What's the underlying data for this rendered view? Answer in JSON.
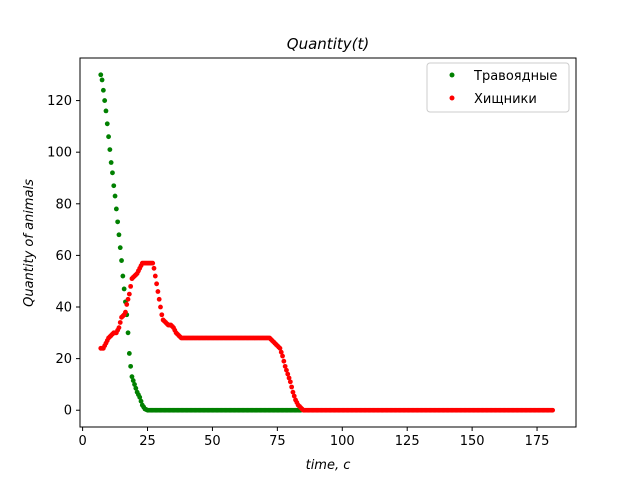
{
  "chart_data": {
    "type": "scatter",
    "title": "Quantity(t)",
    "xlabel": "time,  c",
    "ylabel": "Quantity of animals",
    "xlim": [
      -1,
      190
    ],
    "ylim": [
      -6.5,
      136.5
    ],
    "xticks": [
      0,
      25,
      50,
      75,
      100,
      125,
      150,
      175
    ],
    "yticks": [
      0,
      20,
      40,
      60,
      80,
      100,
      120
    ],
    "grid": false,
    "legend_position": "top-right",
    "series": [
      {
        "name": "Травоядные",
        "color": "#008000",
        "points": [
          [
            7,
            130
          ],
          [
            7.5,
            128
          ],
          [
            8,
            124
          ],
          [
            8.5,
            120
          ],
          [
            9,
            116
          ],
          [
            9.5,
            111
          ],
          [
            10,
            106
          ],
          [
            10.5,
            101
          ],
          [
            11,
            96
          ],
          [
            11.5,
            92
          ],
          [
            12,
            87
          ],
          [
            12.5,
            83
          ],
          [
            13,
            78
          ],
          [
            13.5,
            73
          ],
          [
            14,
            68
          ],
          [
            14.5,
            63
          ],
          [
            15,
            58
          ],
          [
            15.5,
            52
          ],
          [
            16,
            47
          ],
          [
            16.5,
            42
          ],
          [
            17,
            37
          ],
          [
            17.5,
            30
          ],
          [
            18,
            22
          ],
          [
            18.5,
            17
          ],
          [
            19,
            13
          ],
          [
            20,
            10
          ],
          [
            21,
            7
          ],
          [
            22,
            5
          ],
          [
            23,
            2
          ],
          [
            24,
            0.5
          ],
          [
            25,
            0
          ],
          [
            27,
            0
          ],
          [
            30,
            0
          ],
          [
            35,
            0
          ],
          [
            40,
            0
          ],
          [
            45,
            0
          ],
          [
            50,
            0
          ],
          [
            55,
            0
          ],
          [
            60,
            0
          ],
          [
            65,
            0
          ],
          [
            70,
            0
          ],
          [
            75,
            0
          ],
          [
            80,
            0
          ],
          [
            84,
            0
          ]
        ]
      },
      {
        "name": "Хищники",
        "color": "#ff0000",
        "points": [
          [
            7,
            24
          ],
          [
            8,
            24
          ],
          [
            9,
            26
          ],
          [
            10,
            28
          ],
          [
            11,
            29
          ],
          [
            12,
            30
          ],
          [
            13,
            30
          ],
          [
            14,
            32
          ],
          [
            15,
            36
          ],
          [
            16,
            37
          ],
          [
            16.5,
            38
          ],
          [
            17,
            41
          ],
          [
            17.5,
            43
          ],
          [
            18,
            45
          ],
          [
            18.5,
            48
          ],
          [
            19,
            51
          ],
          [
            20,
            52
          ],
          [
            21,
            53
          ],
          [
            22,
            55
          ],
          [
            23,
            57
          ],
          [
            24,
            57
          ],
          [
            25,
            57
          ],
          [
            26,
            57
          ],
          [
            27,
            57
          ],
          [
            27.5,
            55
          ],
          [
            28,
            52
          ],
          [
            28.5,
            49
          ],
          [
            29,
            46
          ],
          [
            29.5,
            43
          ],
          [
            30,
            40
          ],
          [
            30.5,
            37
          ],
          [
            31,
            35
          ],
          [
            32,
            34
          ],
          [
            33,
            33
          ],
          [
            34,
            33
          ],
          [
            35,
            32
          ],
          [
            36,
            30
          ],
          [
            37,
            29
          ],
          [
            38,
            28
          ],
          [
            40,
            28
          ],
          [
            45,
            28
          ],
          [
            50,
            28
          ],
          [
            55,
            28
          ],
          [
            60,
            28
          ],
          [
            65,
            28
          ],
          [
            70,
            28
          ],
          [
            72,
            28
          ],
          [
            73,
            27
          ],
          [
            74,
            26
          ],
          [
            75,
            25
          ],
          [
            76,
            24
          ],
          [
            77,
            21
          ],
          [
            78,
            17
          ],
          [
            79,
            14
          ],
          [
            80,
            11
          ],
          [
            81,
            7
          ],
          [
            82,
            4
          ],
          [
            83,
            2
          ],
          [
            84,
            1
          ],
          [
            85,
            0
          ],
          [
            90,
            0
          ],
          [
            95,
            0
          ],
          [
            100,
            0
          ],
          [
            105,
            0
          ],
          [
            110,
            0
          ],
          [
            115,
            0
          ],
          [
            120,
            0
          ],
          [
            125,
            0
          ],
          [
            130,
            0
          ],
          [
            135,
            0
          ],
          [
            140,
            0
          ],
          [
            145,
            0
          ],
          [
            150,
            0
          ],
          [
            155,
            0
          ],
          [
            160,
            0
          ],
          [
            165,
            0
          ],
          [
            170,
            0
          ],
          [
            175,
            0
          ],
          [
            181,
            0
          ]
        ]
      }
    ]
  }
}
